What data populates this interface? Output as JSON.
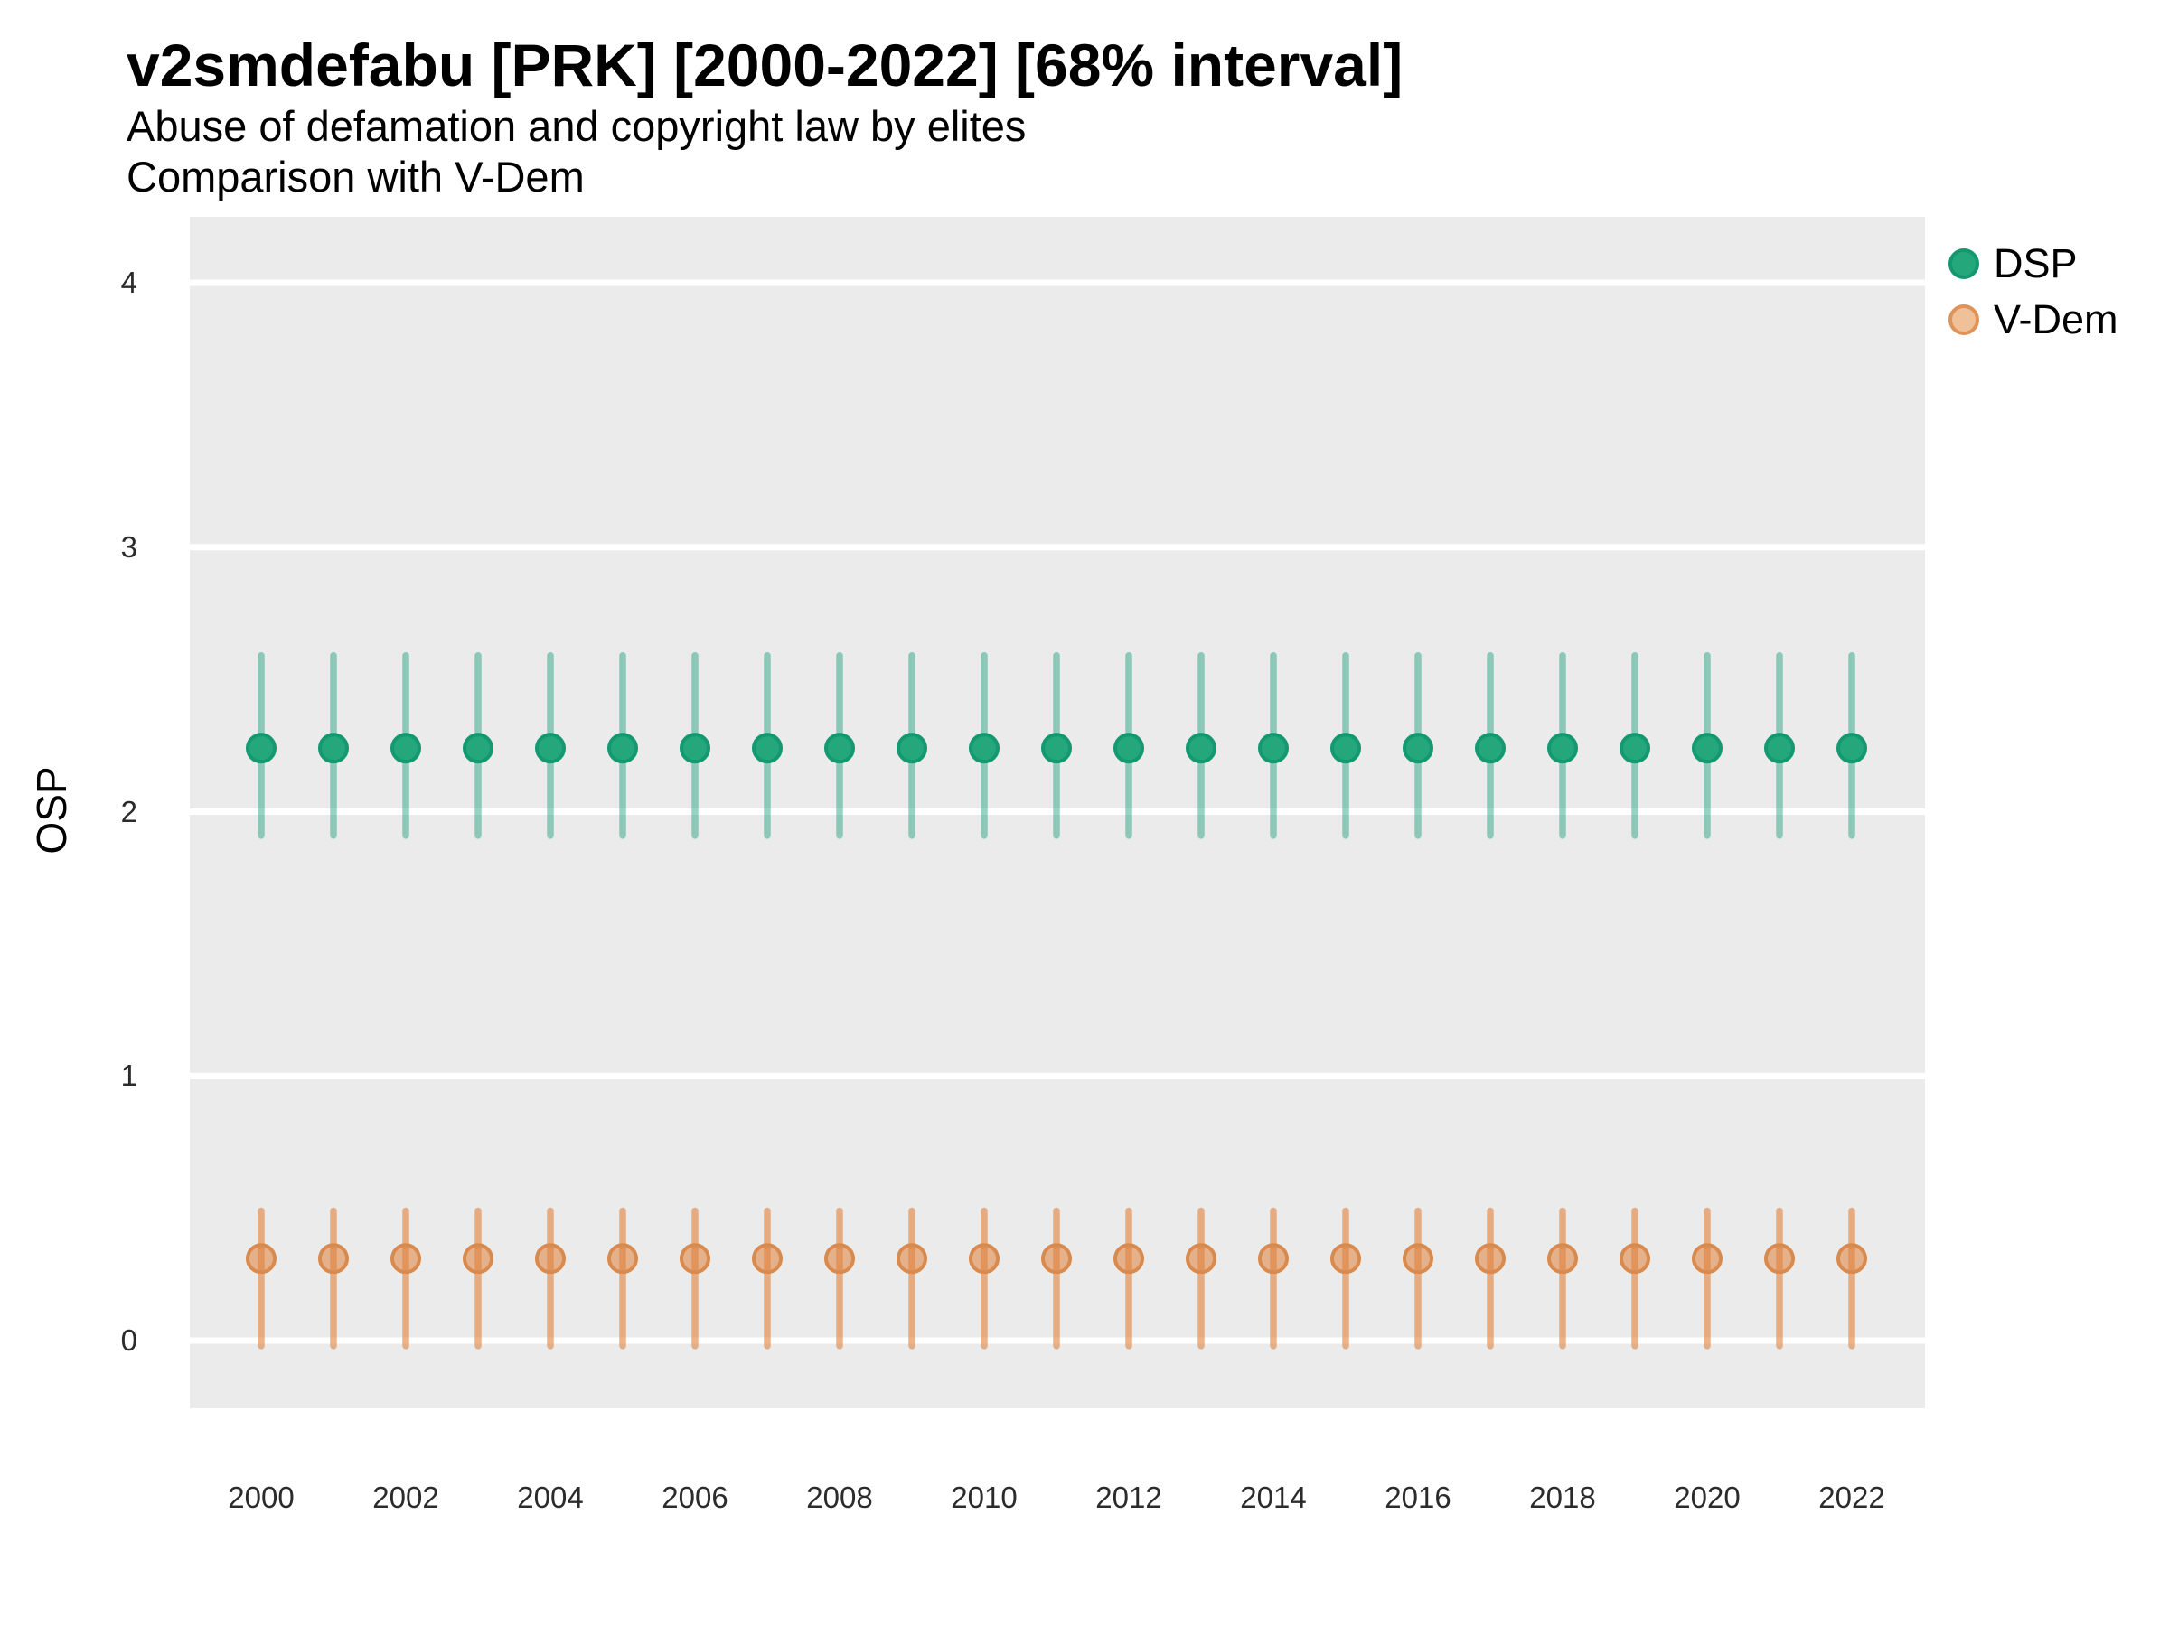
{
  "figure": {
    "title": "v2smdefabu [PRK] [2000-2022] [68% interval]",
    "subtitle": "Abuse of defamation and copyright law by elites",
    "subtitle2": "Comparison with V-Dem"
  },
  "axes": {
    "y_title": "OSP",
    "y_ticks": [
      0,
      1,
      2,
      3,
      4
    ],
    "x_tick_labels": [
      "2000",
      "2002",
      "2004",
      "2006",
      "2008",
      "2010",
      "2012",
      "2014",
      "2016",
      "2018",
      "2020",
      "2022"
    ]
  },
  "colors": {
    "panel_background": "#EBEBEB",
    "gridline": "#FFFFFF",
    "dsp_green": "#1B9E77",
    "vdem_orange": "#E0823C"
  },
  "chart_data": {
    "type": "scatter",
    "variant": "pointrange",
    "title": "v2smdefabu [PRK] [2000-2022] [68% interval]",
    "subtitle": "Abuse of defamation and copyright law by elites",
    "note": "Comparison with V-Dem",
    "variable": "v2smdefabu",
    "country": "PRK",
    "interval": "68%",
    "xlabel": "",
    "ylabel": "OSP",
    "grid": "horizontal white major gridlines on gray panel, no minor grid, no axis ticks",
    "legend_position": "top-right",
    "ylim": [
      -0.26,
      4.25
    ],
    "y_ticks": [
      0,
      1,
      2,
      3,
      4
    ],
    "x": [
      2000,
      2001,
      2002,
      2003,
      2004,
      2005,
      2006,
      2007,
      2008,
      2009,
      2010,
      2011,
      2012,
      2013,
      2014,
      2015,
      2016,
      2017,
      2018,
      2019,
      2020,
      2021,
      2022
    ],
    "x_tick_labels": [
      "2000",
      "2002",
      "2004",
      "2006",
      "2008",
      "2010",
      "2012",
      "2014",
      "2016",
      "2018",
      "2020",
      "2022"
    ],
    "series": [
      {
        "name": "DSP",
        "color": "#13986F",
        "fill": "#25A77C",
        "bar": "rgba(27,158,119,0.45)",
        "mean": [
          2.24,
          2.24,
          2.24,
          2.24,
          2.24,
          2.24,
          2.24,
          2.24,
          2.24,
          2.24,
          2.24,
          2.24,
          2.24,
          2.24,
          2.24,
          2.24,
          2.24,
          2.24,
          2.24,
          2.24,
          2.24,
          2.24,
          2.24
        ],
        "lower": [
          1.91,
          1.91,
          1.91,
          1.91,
          1.91,
          1.91,
          1.91,
          1.91,
          1.91,
          1.91,
          1.91,
          1.91,
          1.91,
          1.91,
          1.91,
          1.91,
          1.91,
          1.91,
          1.91,
          1.91,
          1.91,
          1.91,
          1.91
        ],
        "upper": [
          2.59,
          2.59,
          2.59,
          2.59,
          2.59,
          2.59,
          2.59,
          2.59,
          2.59,
          2.59,
          2.59,
          2.59,
          2.59,
          2.59,
          2.59,
          2.59,
          2.59,
          2.59,
          2.59,
          2.59,
          2.59,
          2.59,
          2.59
        ]
      },
      {
        "name": "V-Dem",
        "color": "#D98A4C",
        "fill": "rgba(224,130,60,0.55)",
        "bar": "rgba(224,130,60,0.60)",
        "legend_fill": "#F0C098",
        "legend_stroke": "#DF9357",
        "mean": [
          0.31,
          0.31,
          0.31,
          0.31,
          0.31,
          0.31,
          0.31,
          0.31,
          0.31,
          0.31,
          0.31,
          0.31,
          0.31,
          0.31,
          0.31,
          0.31,
          0.31,
          0.31,
          0.31,
          0.31,
          0.31,
          0.31,
          0.31
        ],
        "lower": [
          -0.02,
          -0.02,
          -0.02,
          -0.02,
          -0.02,
          -0.02,
          -0.02,
          -0.02,
          -0.02,
          -0.02,
          -0.02,
          -0.02,
          -0.02,
          -0.02,
          -0.02,
          -0.02,
          -0.02,
          -0.02,
          -0.02,
          -0.02,
          -0.02,
          -0.02,
          -0.02
        ],
        "upper": [
          0.49,
          0.49,
          0.49,
          0.49,
          0.49,
          0.49,
          0.49,
          0.49,
          0.49,
          0.49,
          0.49,
          0.49,
          0.49,
          0.49,
          0.49,
          0.49,
          0.49,
          0.49,
          0.49,
          0.49,
          0.49,
          0.49,
          0.49
        ]
      }
    ]
  }
}
